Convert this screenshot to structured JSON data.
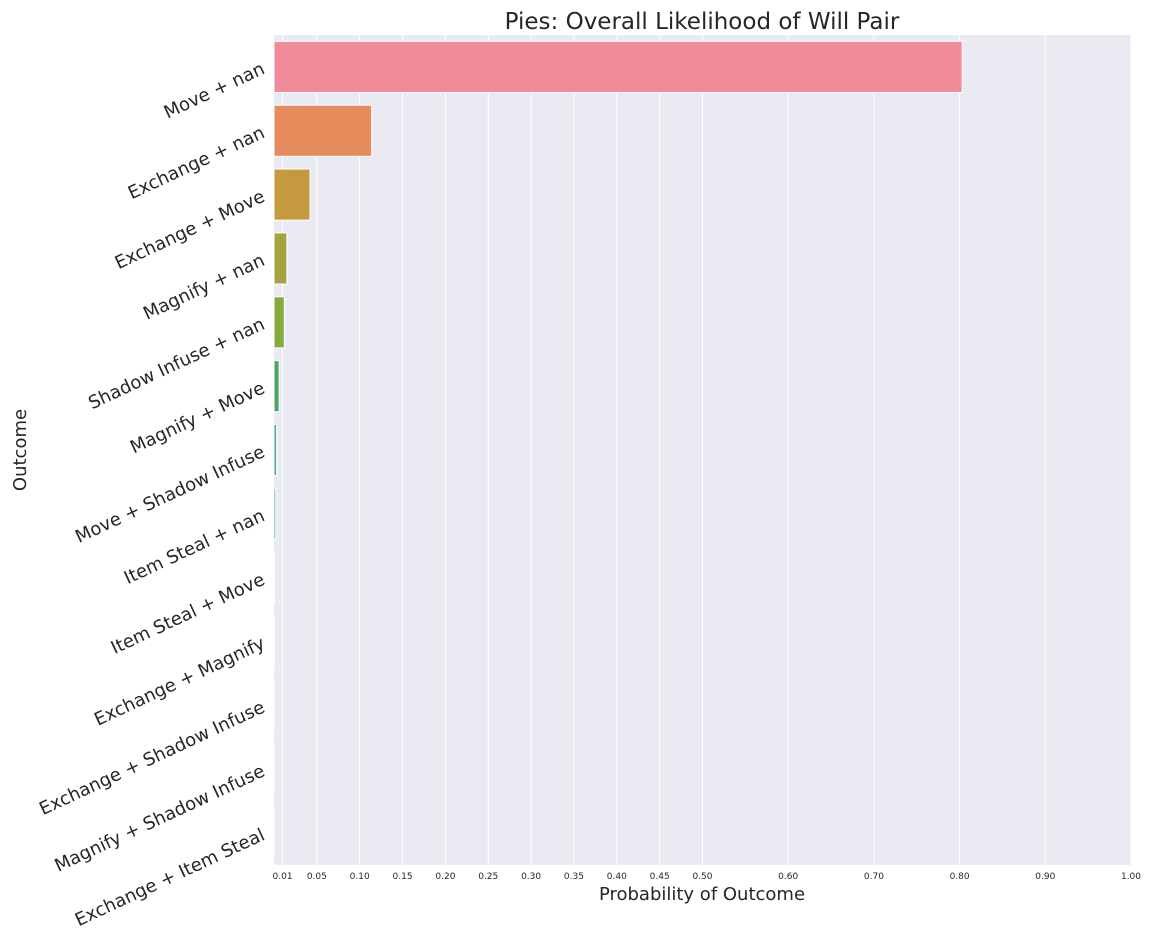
{
  "chart_data": {
    "type": "bar",
    "orientation": "horizontal",
    "title": "Pies: Overall Likelihood of Will Pair",
    "xlabel": "Probability of Outcome",
    "ylabel": "Outcome",
    "xlim": [
      0,
      1.0
    ],
    "x_ticks": [
      0.01,
      0.05,
      0.1,
      0.15,
      0.2,
      0.25,
      0.3,
      0.35,
      0.4,
      0.45,
      0.5,
      0.6,
      0.7,
      0.8,
      0.9,
      1.0
    ],
    "x_tick_labels": [
      "0.01",
      "0.05",
      "0.10",
      "0.15",
      "0.20",
      "0.25",
      "0.30",
      "0.35",
      "0.40",
      "0.45",
      "0.50",
      "0.60",
      "0.70",
      "0.80",
      "0.90",
      "1.00"
    ],
    "grid": true,
    "categories": [
      "Move + nan",
      "Exchange + nan",
      "Exchange + Move",
      "Magnify + nan",
      "Shadow Infuse + nan",
      "Magnify + Move",
      "Move + Shadow Infuse",
      "Item Steal + nan",
      "Item Steal + Move",
      "Exchange + Magnify",
      "Exchange + Shadow Infuse",
      "Magnify + Shadow Infuse",
      "Exchange + Item Steal"
    ],
    "values": [
      0.803,
      0.114,
      0.042,
      0.015,
      0.012,
      0.006,
      0.003,
      0.002,
      0.0005,
      0.0003,
      0.0002,
      0.0001,
      0.0001
    ],
    "colors": [
      "#f08b9a",
      "#e68c5c",
      "#c59a3f",
      "#a8a140",
      "#86aa3e",
      "#48a862",
      "#44a88c",
      "#45a9a5",
      "#48aac4",
      "#5ab0e6",
      "#a7a7ea",
      "#d08eea",
      "#ef85c9"
    ]
  }
}
